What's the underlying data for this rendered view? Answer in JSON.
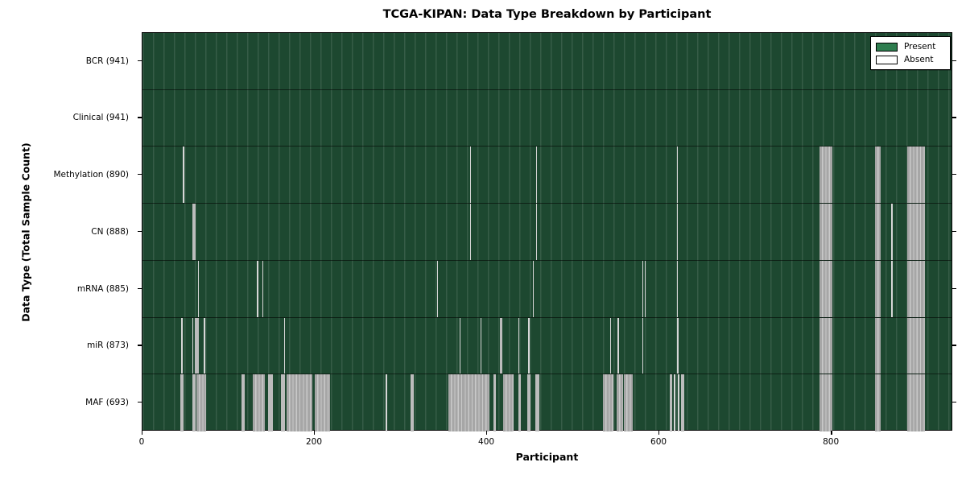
{
  "title": "TCGA-KIPAN: Data Type Breakdown by Participant",
  "xlabel": "Participant",
  "ylabel": "Data Type (Total Sample Count)",
  "legend": {
    "present_label": "Present",
    "absent_label": "Absent"
  },
  "colors": {
    "present_fill": "#1d4830",
    "present_stripe": "#35624a",
    "absent_fill": "#bcbcbc",
    "absent_band_light": "#c9c9c9",
    "legend_present_swatch": "#2e7d4f",
    "legend_absent_swatch": "#ffffff",
    "border": "#000000"
  },
  "chart_data": {
    "type": "heatmap",
    "title": "TCGA-KIPAN: Data Type Breakdown by Participant",
    "xlabel": "Participant",
    "ylabel": "Data Type (Total Sample Count)",
    "x_axis": {
      "min": 0,
      "max": 941,
      "ticks": [
        0,
        200,
        400,
        600,
        800
      ]
    },
    "legend_entries": [
      "Present",
      "Absent"
    ],
    "legend_position": "upper right",
    "cell_states": {
      "present": "green",
      "absent": "white"
    },
    "rows": [
      {
        "label": "BCR (941)",
        "data_type": "BCR",
        "total_samples": 941,
        "absent_intervals": []
      },
      {
        "label": "Clinical (941)",
        "data_type": "Clinical",
        "total_samples": 941,
        "absent_intervals": []
      },
      {
        "label": "Methylation (890)",
        "data_type": "Methylation",
        "total_samples": 890,
        "absent_intervals": [
          [
            47,
            47
          ],
          [
            380,
            380
          ],
          [
            457,
            457
          ],
          [
            620,
            620
          ],
          [
            786,
            800
          ],
          [
            850,
            856
          ],
          [
            888,
            907
          ]
        ]
      },
      {
        "label": "CN (888)",
        "data_type": "CN",
        "total_samples": 888,
        "absent_intervals": [
          [
            58,
            61
          ],
          [
            380,
            380
          ],
          [
            457,
            457
          ],
          [
            620,
            620
          ],
          [
            786,
            800
          ],
          [
            850,
            856
          ],
          [
            869,
            870
          ],
          [
            888,
            907
          ]
        ]
      },
      {
        "label": "mRNA (885)",
        "data_type": "mRNA",
        "total_samples": 885,
        "absent_intervals": [
          [
            64,
            64
          ],
          [
            133,
            133
          ],
          [
            139,
            139
          ],
          [
            342,
            342
          ],
          [
            453,
            453
          ],
          [
            580,
            580
          ],
          [
            583,
            583
          ],
          [
            620,
            620
          ],
          [
            786,
            800
          ],
          [
            850,
            856
          ],
          [
            869,
            870
          ],
          [
            888,
            907
          ]
        ]
      },
      {
        "label": "miR (873)",
        "data_type": "miR",
        "total_samples": 873,
        "absent_intervals": [
          [
            45,
            46
          ],
          [
            58,
            58
          ],
          [
            61,
            64
          ],
          [
            71,
            72
          ],
          [
            164,
            164
          ],
          [
            368,
            368
          ],
          [
            392,
            392
          ],
          [
            415,
            417
          ],
          [
            436,
            436
          ],
          [
            448,
            448
          ],
          [
            543,
            543
          ],
          [
            551,
            552
          ],
          [
            580,
            580
          ],
          [
            620,
            621
          ],
          [
            786,
            800
          ],
          [
            850,
            856
          ],
          [
            888,
            907
          ]
        ]
      },
      {
        "label": "MAF (693)",
        "data_type": "MAF",
        "total_samples": 693,
        "absent_intervals": [
          [
            44,
            47
          ],
          [
            58,
            61
          ],
          [
            63,
            73
          ],
          [
            115,
            118
          ],
          [
            128,
            141
          ],
          [
            146,
            150
          ],
          [
            161,
            164
          ],
          [
            167,
            196
          ],
          [
            200,
            217
          ],
          [
            282,
            283
          ],
          [
            311,
            314
          ],
          [
            355,
            402
          ],
          [
            407,
            409
          ],
          [
            419,
            430
          ],
          [
            436,
            438
          ],
          [
            447,
            449
          ],
          [
            456,
            460
          ],
          [
            534,
            546
          ],
          [
            550,
            557
          ],
          [
            559,
            568
          ],
          [
            612,
            614
          ],
          [
            617,
            618
          ],
          [
            621,
            622
          ],
          [
            625,
            628
          ],
          [
            786,
            800
          ],
          [
            850,
            856
          ],
          [
            888,
            907
          ]
        ]
      }
    ]
  }
}
